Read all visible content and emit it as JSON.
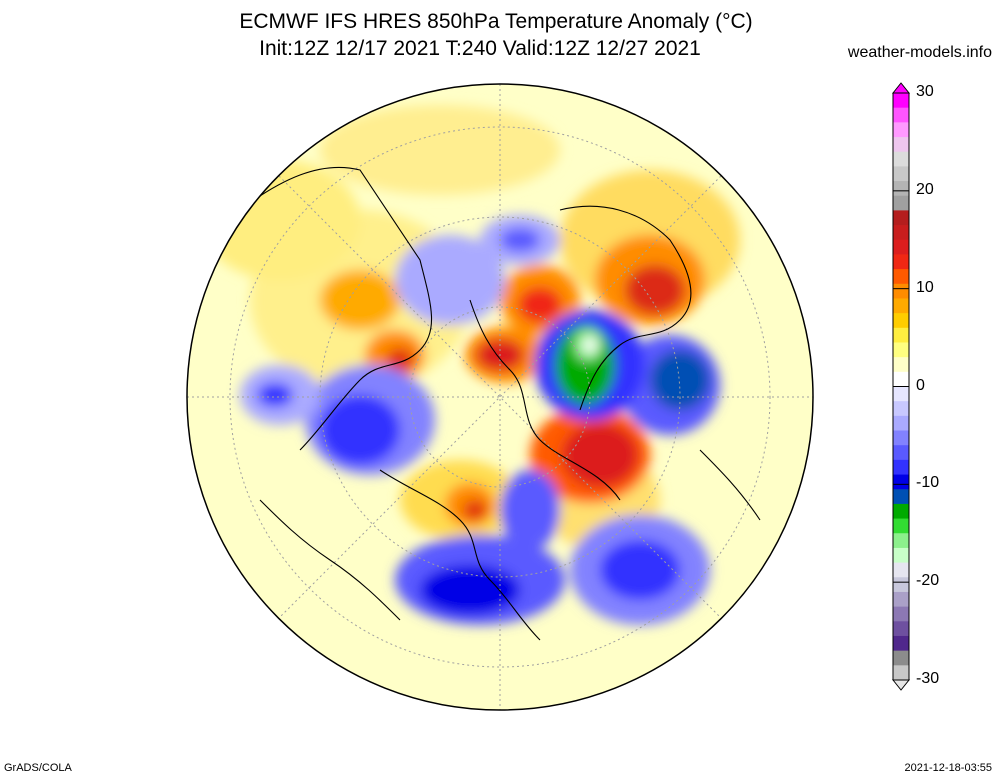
{
  "title": {
    "line1": "ECMWF IFS HRES 850hPa Temperature Anomaly (°C)",
    "line2": "Init:12Z 12/17 2021 T:240 Valid:12Z 12/27 2021"
  },
  "source_site": "weather-models.info",
  "footer": {
    "credit": "GrADS/COLA",
    "timestamp": "2021-12-18-03:55"
  },
  "colorbar": {
    "min": -30,
    "max": 30,
    "tick_labels": [
      "30",
      "20",
      "10",
      "0",
      "-10",
      "-20",
      "-30"
    ],
    "tick_values": [
      30,
      20,
      10,
      0,
      -10,
      -20,
      -30
    ],
    "colors_top_to_bottom": [
      "#ff00ff",
      "#ff55ff",
      "#ff99ff",
      "#eec6ee",
      "#dcdcdc",
      "#c8c8c8",
      "#b4b4b4",
      "#a0a0a0",
      "#b41e1e",
      "#c81e1e",
      "#dc1e1e",
      "#f02814",
      "#ff5a00",
      "#ff8c00",
      "#ffaa00",
      "#ffcd00",
      "#ffee40",
      "#ffff80",
      "#ffffc8",
      "#ffffff",
      "#e6e6ff",
      "#c8c8ff",
      "#aaaaff",
      "#8282ff",
      "#5a5aff",
      "#3232ff",
      "#0000e6",
      "#0050b4",
      "#00aa00",
      "#32dc32",
      "#8cf08c",
      "#c8ffc8",
      "#e6e6f0",
      "#c8c8dc",
      "#aaa0c8",
      "#8c78b4",
      "#6e50a0",
      "#50288c",
      "#8c8c8c",
      "#c8c8c8"
    ]
  },
  "map": {
    "projection": "north-polar-stereographic",
    "field": "850hPa temperature anomaly",
    "background_color": "#ffffc8"
  }
}
